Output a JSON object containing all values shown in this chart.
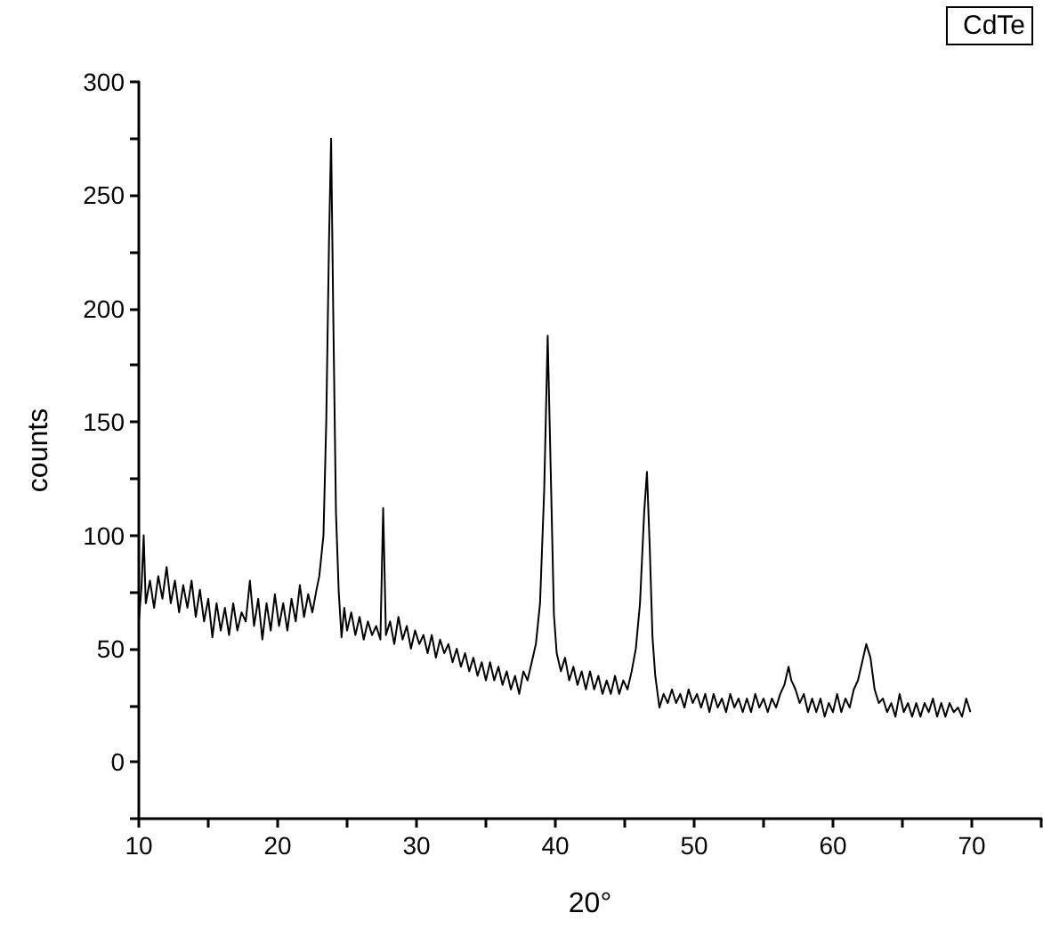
{
  "chart_data": {
    "type": "line",
    "xlabel": "20°",
    "ylabel": "counts",
    "xlim": [
      10,
      75
    ],
    "ylim": [
      -25,
      300
    ],
    "xticks": [
      10,
      {
        "value": 15,
        "label": null
      },
      20,
      {
        "value": 25,
        "label": null
      },
      30,
      {
        "value": 35,
        "label": null
      },
      40,
      {
        "value": 45,
        "label": null
      },
      50,
      {
        "value": 55,
        "label": null
      },
      60,
      {
        "value": 65,
        "label": null
      },
      70,
      {
        "value": 75,
        "label": null
      }
    ],
    "yticks": [
      {
        "value": -25,
        "label": null
      },
      0,
      {
        "value": 25,
        "label": null
      },
      50,
      {
        "value": 75,
        "label": null
      },
      100,
      {
        "value": 125,
        "label": null
      },
      150,
      {
        "value": 175,
        "label": null
      },
      200,
      {
        "value": 225,
        "label": null
      },
      250,
      {
        "value": 275,
        "label": null
      },
      300
    ],
    "grid": false,
    "legend": "top right",
    "marker": "none",
    "line_style": "solid",
    "series": [
      {
        "name": "CdTe",
        "color": "#000000",
        "x": [
          10.0,
          10.2,
          10.35,
          10.5,
          10.8,
          11.1,
          11.4,
          11.7,
          12.0,
          12.3,
          12.6,
          12.9,
          13.2,
          13.5,
          13.8,
          14.1,
          14.4,
          14.7,
          15.0,
          15.3,
          15.6,
          15.9,
          16.2,
          16.5,
          16.8,
          17.1,
          17.4,
          17.7,
          18.0,
          18.3,
          18.6,
          18.9,
          19.2,
          19.5,
          19.8,
          20.1,
          20.4,
          20.7,
          21.0,
          21.3,
          21.6,
          21.9,
          22.2,
          22.5,
          22.8,
          23.0,
          23.3,
          23.5,
          23.7,
          23.85,
          24.0,
          24.2,
          24.4,
          24.6,
          24.8,
          25.0,
          25.3,
          25.6,
          25.9,
          26.2,
          26.5,
          26.8,
          27.1,
          27.4,
          27.6,
          27.8,
          28.1,
          28.4,
          28.7,
          29.0,
          29.3,
          29.6,
          29.9,
          30.2,
          30.5,
          30.8,
          31.1,
          31.4,
          31.7,
          32.0,
          32.3,
          32.6,
          32.9,
          33.2,
          33.5,
          33.8,
          34.1,
          34.4,
          34.7,
          35.0,
          35.3,
          35.6,
          35.9,
          36.2,
          36.5,
          36.8,
          37.1,
          37.4,
          37.7,
          38.0,
          38.3,
          38.6,
          38.9,
          39.2,
          39.45,
          39.7,
          39.9,
          40.1,
          40.4,
          40.7,
          41.0,
          41.3,
          41.6,
          41.9,
          42.2,
          42.5,
          42.8,
          43.1,
          43.4,
          43.7,
          44.0,
          44.3,
          44.6,
          44.9,
          45.2,
          45.5,
          45.8,
          46.1,
          46.4,
          46.6,
          46.8,
          47.0,
          47.2,
          47.5,
          47.8,
          48.1,
          48.4,
          48.7,
          49.0,
          49.3,
          49.6,
          49.9,
          50.2,
          50.5,
          50.8,
          51.1,
          51.4,
          51.7,
          52.0,
          52.3,
          52.6,
          52.9,
          53.2,
          53.5,
          53.8,
          54.1,
          54.4,
          54.7,
          55.0,
          55.3,
          55.6,
          55.9,
          56.2,
          56.5,
          56.8,
          57.0,
          57.3,
          57.6,
          57.9,
          58.2,
          58.5,
          58.8,
          59.1,
          59.4,
          59.7,
          60.0,
          60.3,
          60.6,
          60.9,
          61.2,
          61.5,
          61.8,
          62.1,
          62.4,
          62.7,
          63.0,
          63.3,
          63.6,
          63.9,
          64.2,
          64.5,
          64.8,
          65.1,
          65.4,
          65.7,
          66.0,
          66.3,
          66.6,
          66.9,
          67.2,
          67.5,
          67.8,
          68.1,
          68.4,
          68.7,
          69.0,
          69.3,
          69.6,
          69.9
        ],
        "values": [
          62,
          78,
          100,
          70,
          80,
          68,
          82,
          72,
          86,
          70,
          80,
          66,
          78,
          68,
          80,
          64,
          76,
          62,
          72,
          55,
          70,
          58,
          68,
          56,
          70,
          58,
          66,
          62,
          80,
          60,
          72,
          54,
          70,
          58,
          74,
          60,
          70,
          58,
          72,
          62,
          78,
          64,
          74,
          66,
          76,
          82,
          100,
          150,
          230,
          275,
          200,
          110,
          75,
          55,
          68,
          58,
          66,
          56,
          64,
          54,
          62,
          56,
          60,
          54,
          112,
          56,
          62,
          52,
          64,
          54,
          60,
          50,
          58,
          52,
          56,
          48,
          56,
          46,
          54,
          48,
          52,
          44,
          50,
          42,
          48,
          40,
          46,
          38,
          44,
          36,
          44,
          36,
          42,
          34,
          40,
          32,
          38,
          30,
          40,
          36,
          44,
          52,
          70,
          120,
          188,
          120,
          65,
          48,
          40,
          46,
          36,
          42,
          34,
          40,
          32,
          40,
          32,
          38,
          30,
          36,
          30,
          38,
          30,
          36,
          32,
          40,
          50,
          70,
          110,
          128,
          95,
          55,
          38,
          24,
          30,
          26,
          32,
          26,
          30,
          24,
          32,
          26,
          30,
          24,
          30,
          22,
          30,
          24,
          28,
          22,
          30,
          24,
          28,
          22,
          28,
          22,
          30,
          24,
          28,
          22,
          28,
          24,
          30,
          34,
          42,
          36,
          32,
          26,
          30,
          22,
          28,
          22,
          28,
          20,
          26,
          22,
          30,
          22,
          28,
          24,
          32,
          36,
          44,
          52,
          46,
          32,
          26,
          28,
          22,
          26,
          20,
          30,
          22,
          26,
          20,
          26,
          20,
          26,
          22,
          28,
          20,
          26,
          20,
          26,
          22,
          24,
          20,
          28,
          22
        ]
      }
    ]
  }
}
